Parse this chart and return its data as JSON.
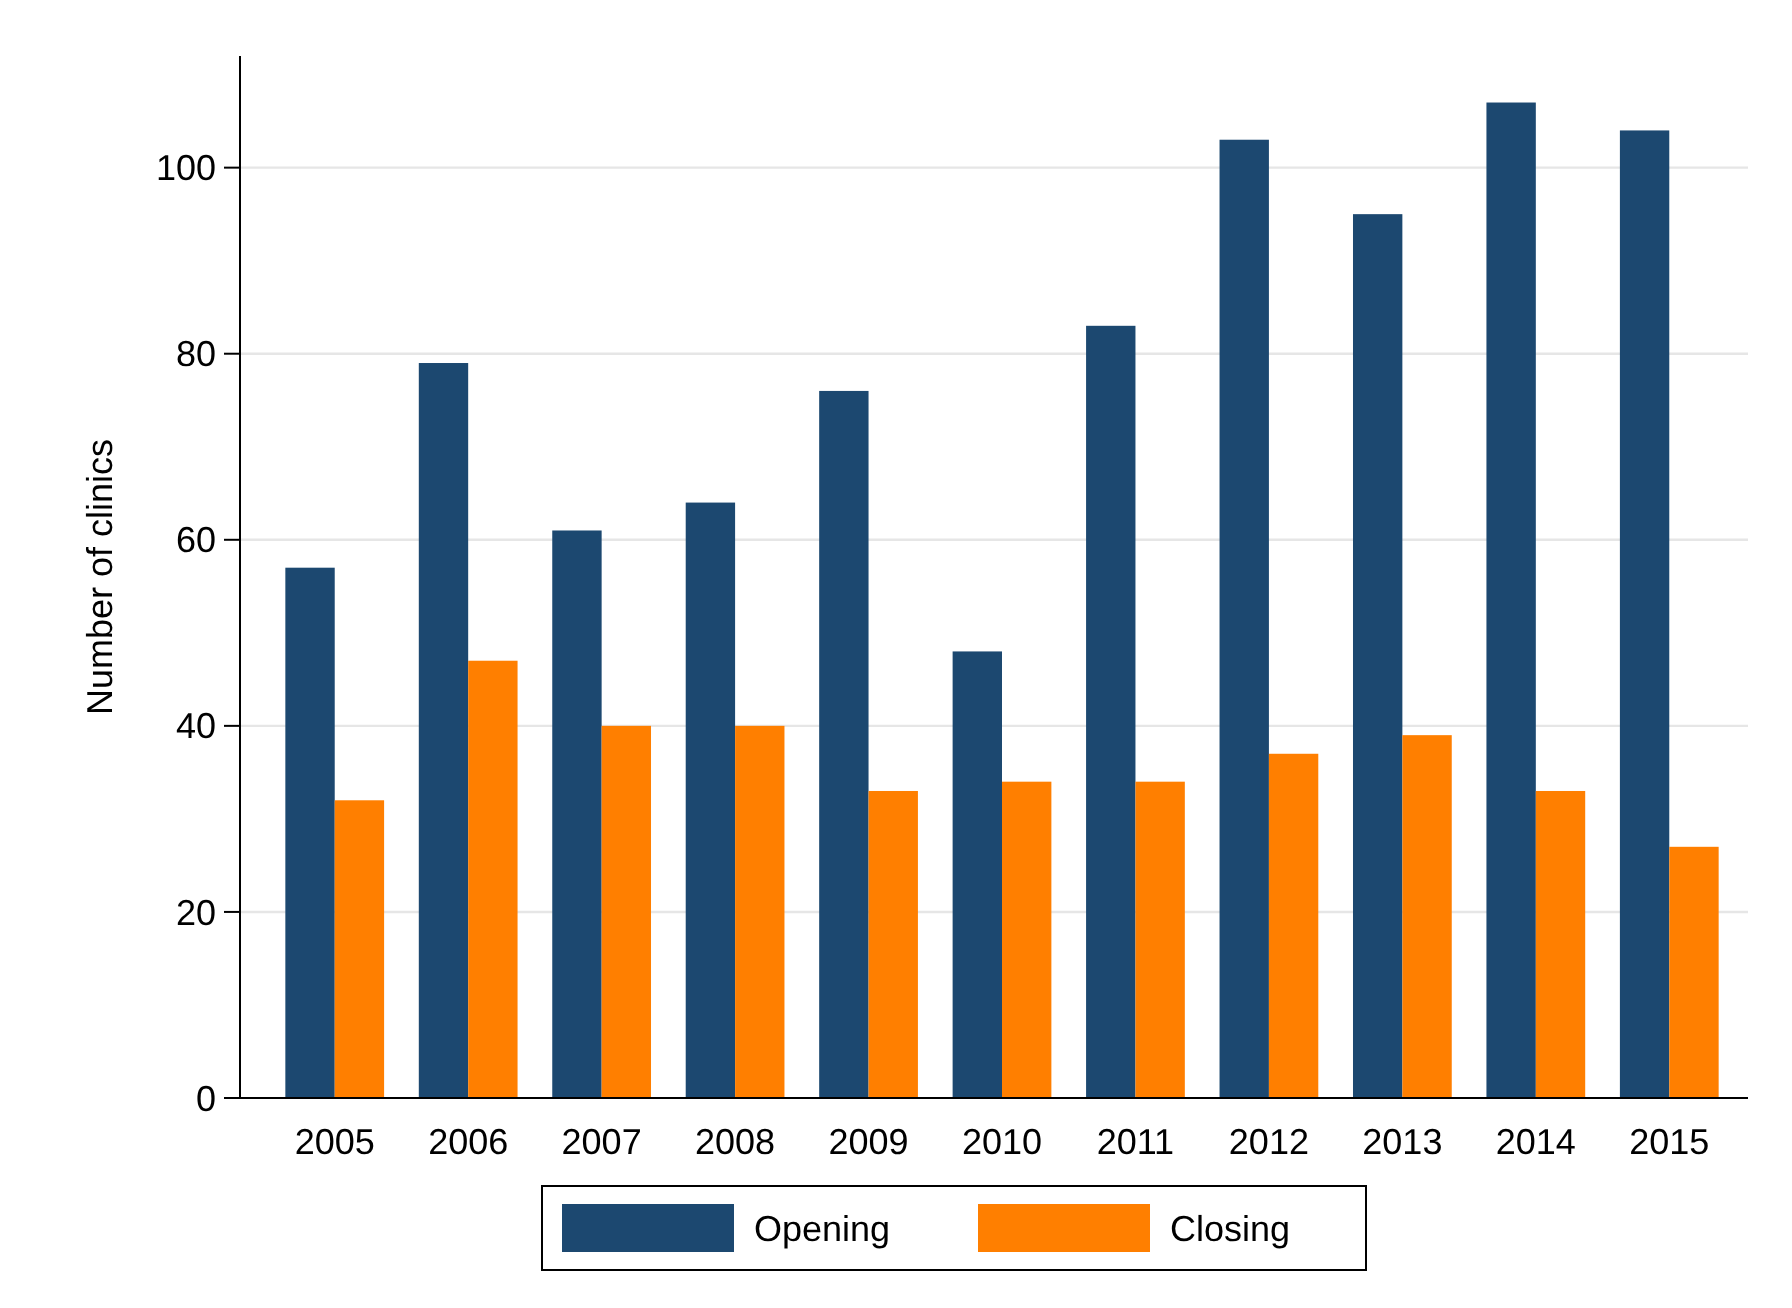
{
  "chart_data": {
    "type": "bar",
    "ylabel": "Number of clinics",
    "categories": [
      "2005",
      "2006",
      "2007",
      "2008",
      "2009",
      "2010",
      "2011",
      "2012",
      "2013",
      "2014",
      "2015"
    ],
    "series": [
      {
        "name": "Opening",
        "color": "#1c4870",
        "values": [
          57,
          79,
          61,
          64,
          76,
          48,
          83,
          103,
          95,
          107,
          104
        ]
      },
      {
        "name": "Closing",
        "color": "#ff7f00",
        "values": [
          32,
          47,
          40,
          40,
          33,
          34,
          34,
          37,
          39,
          33,
          27
        ]
      }
    ],
    "ylim": [
      0,
      112
    ],
    "yticks": [
      0,
      20,
      40,
      60,
      80,
      100
    ],
    "grid": "y",
    "legend": "bottom"
  }
}
